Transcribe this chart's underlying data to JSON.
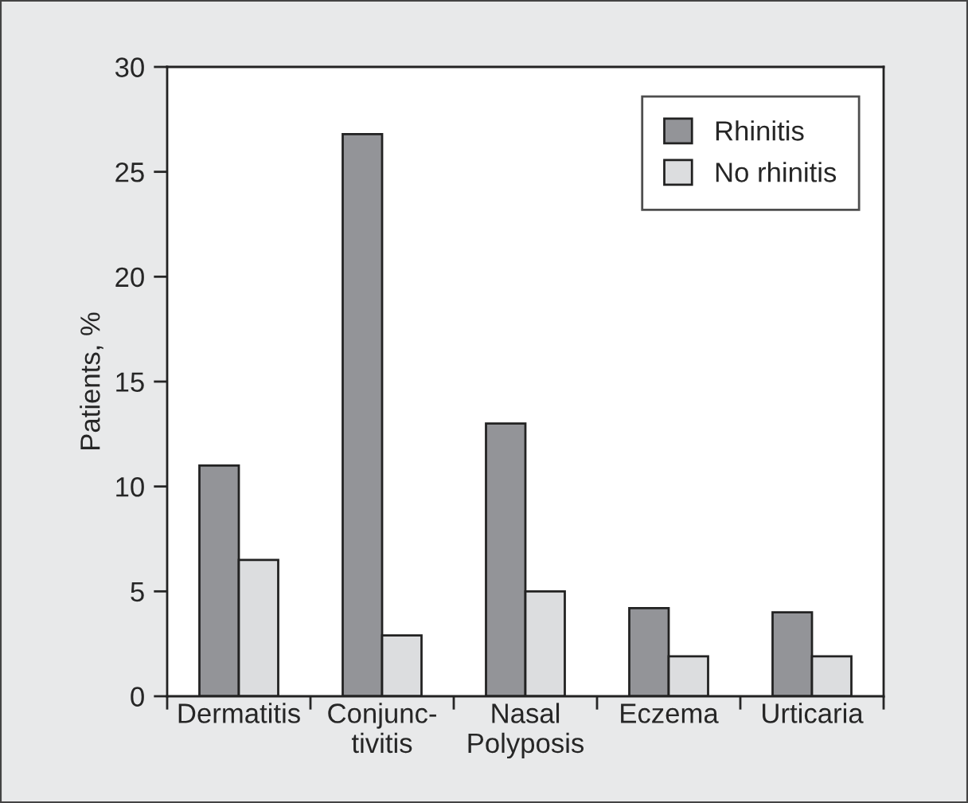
{
  "chart_data": {
    "type": "bar",
    "ylabel": "Patients, %",
    "categories": [
      "Dermatitis",
      "Conjunc-\ntivitis",
      "Nasal\nPolyposis",
      "Eczema",
      "Urticaria"
    ],
    "series": [
      {
        "name": "Rhinitis",
        "color": "#939498",
        "values": [
          11.0,
          26.8,
          13.0,
          4.2,
          4.0
        ]
      },
      {
        "name": "No rhinitis",
        "color": "#dcdddf",
        "values": [
          6.5,
          2.9,
          5.0,
          1.9,
          1.9
        ]
      }
    ],
    "ylim": [
      0,
      30
    ],
    "yticks": [
      0,
      5,
      10,
      15,
      20,
      25,
      30
    ],
    "grid": false,
    "legend": "top right"
  }
}
